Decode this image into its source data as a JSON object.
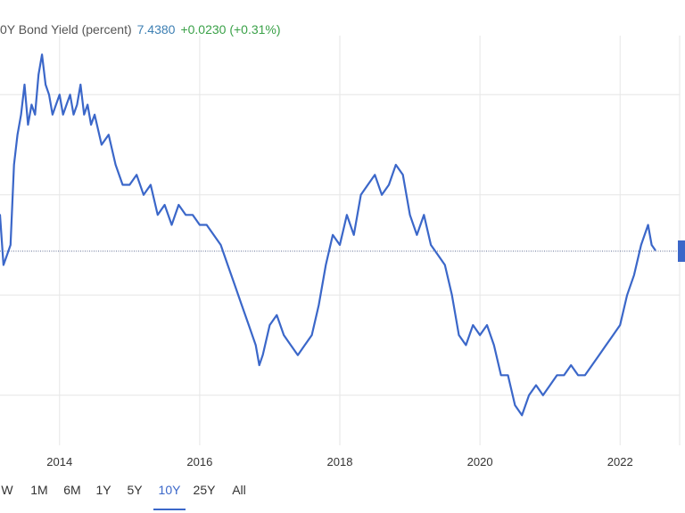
{
  "header": {
    "title": "0Y Bond Yield (percent)",
    "price": "7.4380",
    "change": "+0.0230 (+0.31%)"
  },
  "colors": {
    "line": "#3b67c9",
    "grid": "#e6e6e6",
    "reference_line": "#2e3f73",
    "current_marker": "#3b67c9",
    "active_range": "#3b67c9",
    "change_positive": "#3aa148",
    "price": "#3d7fb3"
  },
  "range_selector": {
    "items": [
      "W",
      "1M",
      "6M",
      "1Y",
      "5Y",
      "10Y",
      "25Y",
      "All"
    ],
    "active": "10Y"
  },
  "chart_data": {
    "type": "line",
    "title": "",
    "xlabel": "",
    "ylabel": "",
    "x_tick_labels": [
      "2014",
      "2016",
      "2018",
      "2020",
      "2022"
    ],
    "y_tick_labels": [],
    "xlim": [
      2013.15,
      2022.85
    ],
    "ylim": [
      5.5,
      9.5
    ],
    "grid": true,
    "legend": "none",
    "reference_value": 7.438,
    "last_value": 7.438,
    "series": [
      {
        "x": [
          2013.15,
          2013.2,
          2013.25,
          2013.3,
          2013.35,
          2013.4,
          2013.45,
          2013.5,
          2013.55,
          2013.6,
          2013.65,
          2013.7,
          2013.75,
          2013.8,
          2013.85,
          2013.9,
          2013.95,
          2014.0,
          2014.05,
          2014.1,
          2014.15,
          2014.2,
          2014.25,
          2014.3,
          2014.35,
          2014.4,
          2014.45,
          2014.5,
          2014.6,
          2014.7,
          2014.8,
          2014.9,
          2015.0,
          2015.1,
          2015.2,
          2015.3,
          2015.4,
          2015.5,
          2015.6,
          2015.7,
          2015.8,
          2015.9,
          2016.0,
          2016.1,
          2016.2,
          2016.3,
          2016.4,
          2016.5,
          2016.6,
          2016.7,
          2016.8,
          2016.85,
          2016.9,
          2017.0,
          2017.1,
          2017.2,
          2017.3,
          2017.4,
          2017.5,
          2017.6,
          2017.7,
          2017.8,
          2017.9,
          2018.0,
          2018.1,
          2018.2,
          2018.3,
          2018.4,
          2018.5,
          2018.6,
          2018.7,
          2018.8,
          2018.9,
          2019.0,
          2019.1,
          2019.2,
          2019.3,
          2019.4,
          2019.5,
          2019.6,
          2019.7,
          2019.8,
          2019.9,
          2020.0,
          2020.1,
          2020.2,
          2020.3,
          2020.4,
          2020.5,
          2020.6,
          2020.7,
          2020.8,
          2020.9,
          2021.0,
          2021.1,
          2021.2,
          2021.3,
          2021.4,
          2021.5,
          2021.6,
          2021.7,
          2021.8,
          2021.9,
          2022.0,
          2022.1,
          2022.2,
          2022.3,
          2022.4,
          2022.45,
          2022.5
        ],
        "y": [
          7.8,
          7.3,
          7.4,
          7.5,
          8.3,
          8.6,
          8.8,
          9.1,
          8.7,
          8.9,
          8.8,
          9.2,
          9.4,
          9.1,
          9.0,
          8.8,
          8.9,
          9.0,
          8.8,
          8.9,
          9.0,
          8.8,
          8.9,
          9.1,
          8.8,
          8.9,
          8.7,
          8.8,
          8.5,
          8.6,
          8.3,
          8.1,
          8.1,
          8.2,
          8.0,
          8.1,
          7.8,
          7.9,
          7.7,
          7.9,
          7.8,
          7.8,
          7.7,
          7.7,
          7.6,
          7.5,
          7.3,
          7.1,
          6.9,
          6.7,
          6.5,
          6.3,
          6.4,
          6.7,
          6.8,
          6.6,
          6.5,
          6.4,
          6.5,
          6.6,
          6.9,
          7.3,
          7.6,
          7.5,
          7.8,
          7.6,
          8.0,
          8.1,
          8.2,
          8.0,
          8.1,
          8.3,
          8.2,
          7.8,
          7.6,
          7.8,
          7.5,
          7.4,
          7.3,
          7.0,
          6.6,
          6.5,
          6.7,
          6.6,
          6.7,
          6.5,
          6.2,
          6.2,
          5.9,
          5.8,
          6.0,
          6.1,
          6.0,
          6.1,
          6.2,
          6.2,
          6.3,
          6.2,
          6.2,
          6.3,
          6.4,
          6.5,
          6.6,
          6.7,
          7.0,
          7.2,
          7.5,
          7.7,
          7.5,
          7.45
        ]
      }
    ]
  }
}
